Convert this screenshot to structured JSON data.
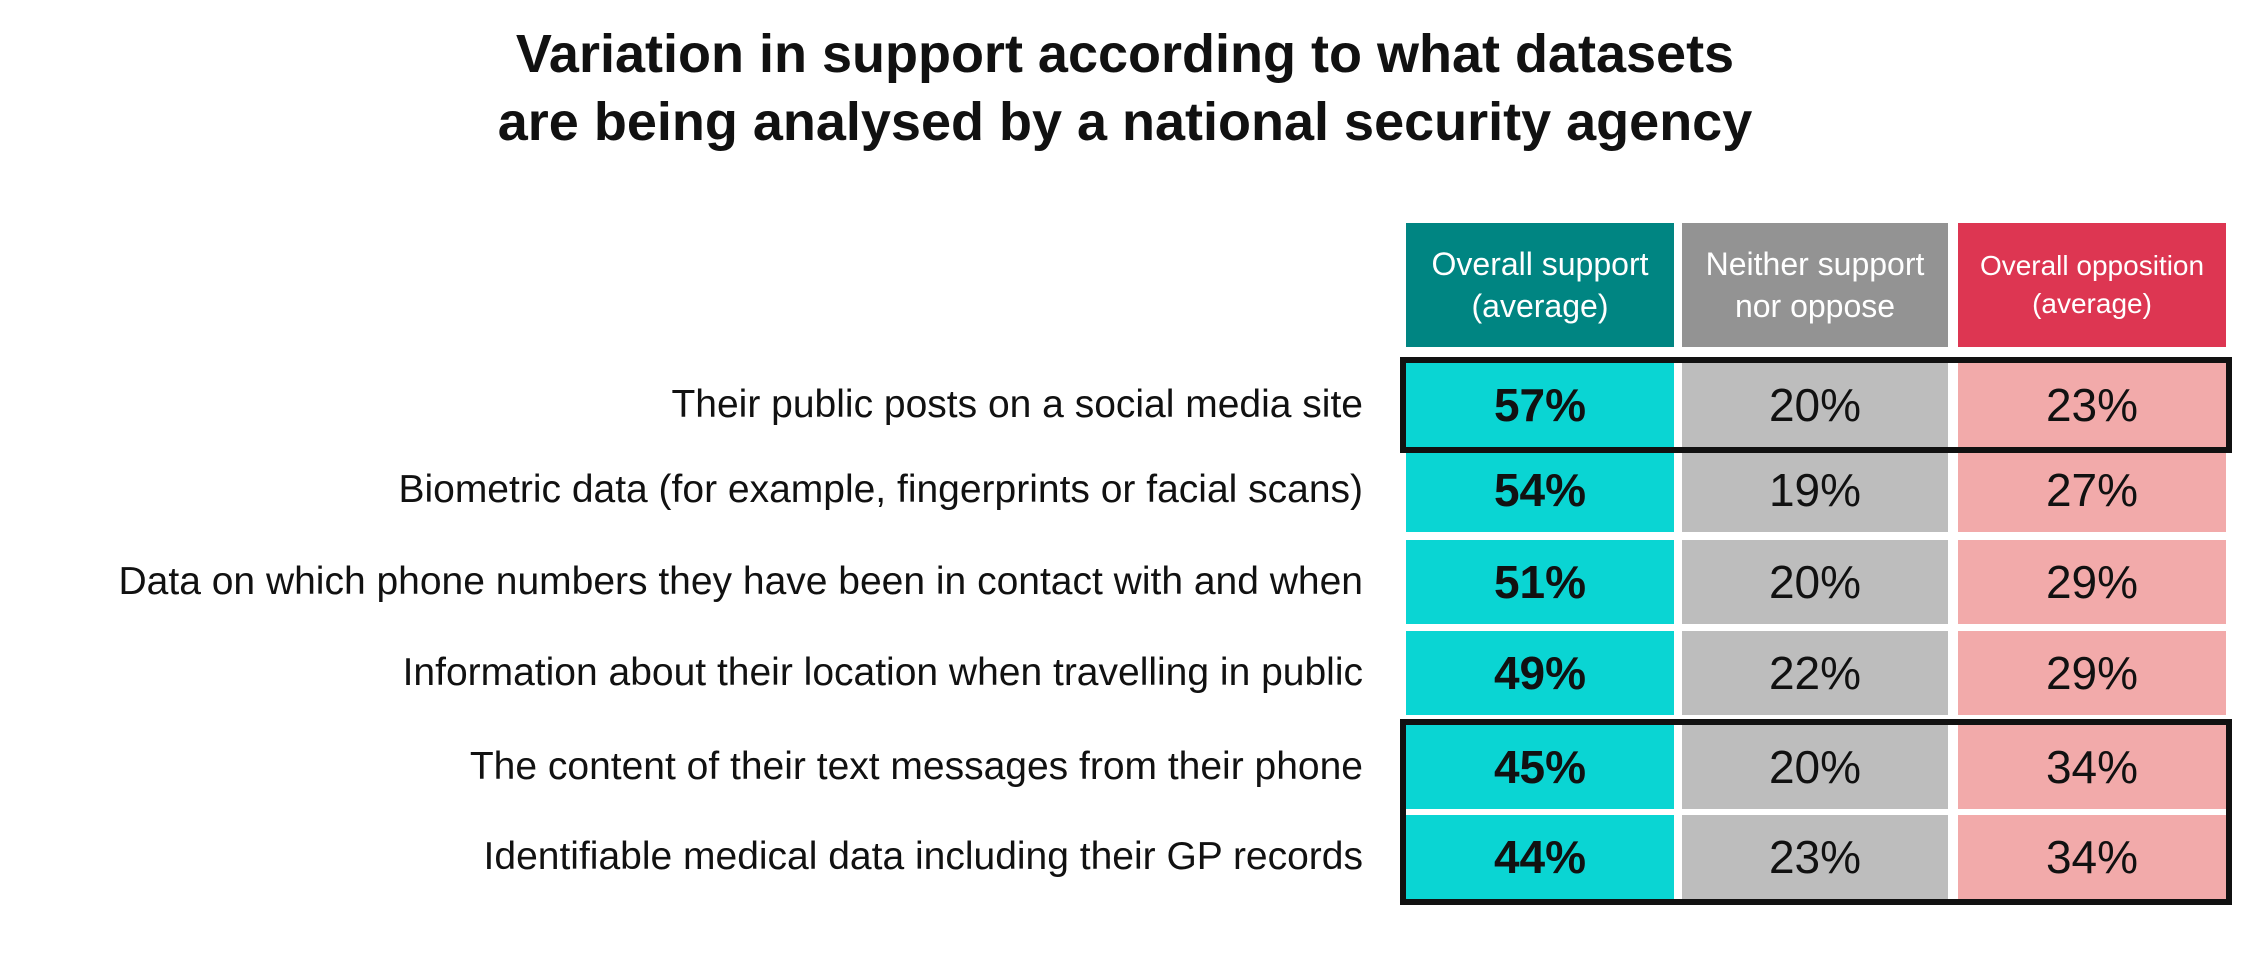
{
  "chart_data": {
    "type": "table",
    "title": [
      "Variation in support according to what datasets",
      "are being analysed by a national security agency"
    ],
    "columns": [
      {
        "label": [
          "Overall support",
          "(average)"
        ],
        "color": "#008582",
        "cell_color": "#0AD5D3"
      },
      {
        "label": [
          "Neither support",
          "nor oppose"
        ],
        "color": "#939393",
        "cell_color": "#BDBDBD"
      },
      {
        "label": [
          "Overall opposition",
          "(average)"
        ],
        "color": "#DD3652",
        "cell_color": "#F2AAAA"
      }
    ],
    "rows": [
      {
        "label": "Their public posts on a social media site",
        "values": [
          "57%",
          "20%",
          "23%"
        ],
        "support": 57,
        "neither": 20,
        "oppose": 23
      },
      {
        "label": "Biometric data (for example, fingerprints or facial scans)",
        "values": [
          "54%",
          "19%",
          "27%"
        ],
        "support": 54,
        "neither": 19,
        "oppose": 27
      },
      {
        "label": "Data on which phone numbers they have been in contact with and when",
        "values": [
          "51%",
          "20%",
          "29%"
        ],
        "support": 51,
        "neither": 20,
        "oppose": 29
      },
      {
        "label": "Information about their location when travelling in public",
        "values": [
          "49%",
          "22%",
          "29%"
        ],
        "support": 49,
        "neither": 22,
        "oppose": 29
      },
      {
        "label": "The content of their text messages from their phone",
        "values": [
          "45%",
          "20%",
          "34%"
        ],
        "support": 45,
        "neither": 20,
        "oppose": 34
      },
      {
        "label": "Identifiable medical data including their GP records",
        "values": [
          "44%",
          "23%",
          "34%"
        ],
        "support": 44,
        "neither": 23,
        "oppose": 34
      }
    ],
    "highlighted_rows": [
      [
        0
      ],
      [
        4,
        5
      ]
    ]
  }
}
